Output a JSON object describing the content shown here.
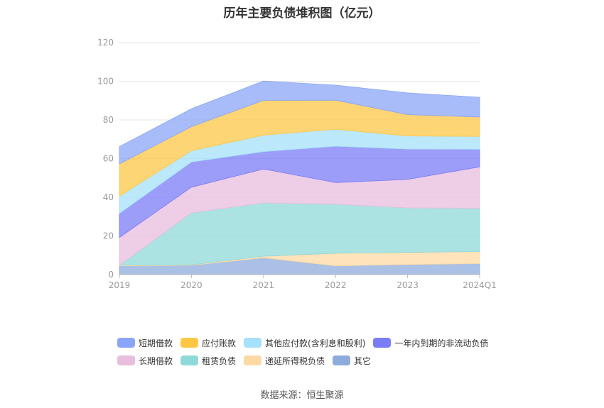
{
  "chart_data": {
    "type": "area",
    "stacked": true,
    "title": "历年主要负债堆积图（亿元）",
    "categories": [
      "2019",
      "2020",
      "2021",
      "2022",
      "2023",
      "2024Q1"
    ],
    "y_ticks": [
      "0",
      "20",
      "40",
      "60",
      "80",
      "100",
      "120"
    ],
    "ylim": [
      0,
      120
    ],
    "grid": true,
    "legend_position": "bottom",
    "series": [
      {
        "name": "其它",
        "color": "#8eabdc",
        "values": [
          4.5,
          4.8,
          8.7,
          4.5,
          5.2,
          5.7
        ]
      },
      {
        "name": "递延所得税负债",
        "color": "#fdd9a4",
        "values": [
          0.3,
          0.3,
          0.8,
          6.6,
          6.3,
          6.2
        ]
      },
      {
        "name": "租赁负债",
        "color": "#8fd9d8",
        "values": [
          0.0,
          26.8,
          27.6,
          25.3,
          23.0,
          22.4
        ]
      },
      {
        "name": "长期借款",
        "color": "#e7bedd",
        "values": [
          14.4,
          13.3,
          17.5,
          11.2,
          14.7,
          21.4
        ]
      },
      {
        "name": "一年内到期的非流动负债",
        "color": "#7b7cf7",
        "values": [
          12.4,
          13.0,
          9.0,
          18.8,
          15.7,
          9.1
        ]
      },
      {
        "name": "其他应付款(含利息和股利)",
        "color": "#a6e0fb",
        "values": [
          9.0,
          5.9,
          8.5,
          8.8,
          6.8,
          6.7
        ]
      },
      {
        "name": "应付账款",
        "color": "#fec746",
        "values": [
          16.6,
          12.4,
          18.0,
          15.0,
          11.0,
          10.0
        ]
      },
      {
        "name": "短期借款",
        "color": "#8aa5f7",
        "values": [
          9.0,
          9.3,
          10.0,
          7.8,
          11.3,
          10.2
        ]
      }
    ]
  },
  "legend": {
    "row1": [
      {
        "name": "短期借款",
        "color": "#8aa5f7"
      },
      {
        "name": "应付账款",
        "color": "#fec746"
      },
      {
        "name": "其他应付款(含利息和股利)",
        "color": "#a6e0fb"
      },
      {
        "name": "一年内到期的非流动负债",
        "color": "#7b7cf7"
      }
    ],
    "row2": [
      {
        "name": "长期借款",
        "color": "#e7bedd"
      },
      {
        "name": "租赁负债",
        "color": "#8fd9d8"
      },
      {
        "name": "递延所得税负债",
        "color": "#fdd9a4"
      },
      {
        "name": "其它",
        "color": "#8eabdc"
      }
    ]
  },
  "source": "数据来源：恒生聚源"
}
